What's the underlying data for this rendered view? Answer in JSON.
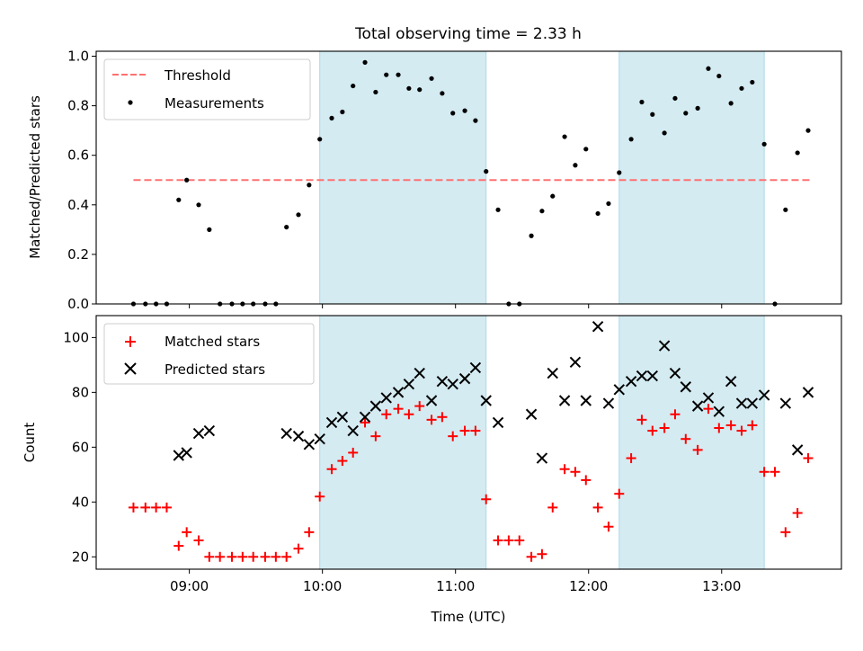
{
  "figure": {
    "title": "Total observing time = 2.33 h",
    "xlabel": "Time (UTC)",
    "x_tick_labels": [
      "09:00",
      "10:00",
      "11:00",
      "12:00",
      "13:00"
    ]
  },
  "colors": {
    "threshold": "#ff7070",
    "measurements": "#000000",
    "matched": "#ff0000",
    "predicted": "#000000",
    "observing_band": "#add8e6"
  },
  "chart_data": [
    {
      "type": "scatter",
      "panel": "top",
      "title": "Total observing time = 2.33 h",
      "xlabel": "",
      "ylabel": "Matched/Predicted stars",
      "x_unit": "hours UTC",
      "xlim": [
        8.3,
        13.9
      ],
      "ylim": [
        0.0,
        1.02
      ],
      "y_ticks": [
        0.0,
        0.2,
        0.4,
        0.6,
        0.8,
        1.0
      ],
      "y_tick_labels": [
        "0.0",
        "0.2",
        "0.4",
        "0.6",
        "0.8",
        "1.0"
      ],
      "legend": "upper-left",
      "grid": false,
      "shaded_intervals": [
        [
          9.98,
          11.23
        ],
        [
          12.23,
          13.32
        ]
      ],
      "series": [
        {
          "name": "Threshold",
          "style": "dashed-line",
          "x": [
            8.58,
            13.67
          ],
          "y": [
            0.5,
            0.5
          ]
        },
        {
          "name": "Measurements",
          "style": "dot",
          "x": [
            8.58,
            8.67,
            8.75,
            8.83,
            8.92,
            8.98,
            9.07,
            9.15,
            9.23,
            9.32,
            9.4,
            9.48,
            9.57,
            9.65,
            9.73,
            9.82,
            9.9,
            9.98,
            10.07,
            10.15,
            10.23,
            10.32,
            10.4,
            10.48,
            10.57,
            10.65,
            10.73,
            10.82,
            10.9,
            10.98,
            11.07,
            11.15,
            11.23,
            11.32,
            11.4,
            11.48,
            11.57,
            11.65,
            11.73,
            11.82,
            11.9,
            11.98,
            12.07,
            12.15,
            12.23,
            12.32,
            12.4,
            12.48,
            12.57,
            12.65,
            12.73,
            12.82,
            12.9,
            12.98,
            13.07,
            13.15,
            13.23,
            13.32,
            13.4,
            13.48,
            13.57,
            13.65
          ],
          "y": [
            0.0,
            0.0,
            0.0,
            0.0,
            0.42,
            0.5,
            0.4,
            0.3,
            0.0,
            0.0,
            0.0,
            0.0,
            0.0,
            0.0,
            0.31,
            0.36,
            0.48,
            0.665,
            0.75,
            0.775,
            0.88,
            0.975,
            0.855,
            0.925,
            0.925,
            0.87,
            0.865,
            0.91,
            0.85,
            0.77,
            0.78,
            0.74,
            0.535,
            0.38,
            0.0,
            0.0,
            0.275,
            0.375,
            0.435,
            0.675,
            0.56,
            0.625,
            0.365,
            0.405,
            0.53,
            0.665,
            0.815,
            0.765,
            0.69,
            0.83,
            0.77,
            0.79,
            0.95,
            0.92,
            0.81,
            0.87,
            0.895,
            0.645,
            0.0,
            0.38,
            0.61,
            0.7
          ]
        }
      ]
    },
    {
      "type": "scatter",
      "panel": "bottom",
      "title": "",
      "xlabel": "Time (UTC)",
      "ylabel": "Count",
      "x_unit": "hours UTC",
      "xlim": [
        8.3,
        13.9
      ],
      "ylim": [
        15.5,
        108
      ],
      "y_ticks": [
        20,
        40,
        60,
        80,
        100
      ],
      "y_tick_labels": [
        "20",
        "40",
        "60",
        "80",
        "100"
      ],
      "legend": "upper-left",
      "grid": false,
      "shaded_intervals": [
        [
          9.98,
          11.23
        ],
        [
          12.23,
          13.32
        ]
      ],
      "series": [
        {
          "name": "Matched stars",
          "marker": "plus",
          "x": [
            8.58,
            8.67,
            8.75,
            8.83,
            8.92,
            8.98,
            9.07,
            9.15,
            9.23,
            9.32,
            9.4,
            9.48,
            9.57,
            9.65,
            9.73,
            9.82,
            9.9,
            9.98,
            10.07,
            10.15,
            10.23,
            10.32,
            10.4,
            10.48,
            10.57,
            10.65,
            10.73,
            10.82,
            10.9,
            10.98,
            11.07,
            11.15,
            11.23,
            11.32,
            11.4,
            11.48,
            11.57,
            11.65,
            11.73,
            11.82,
            11.9,
            11.98,
            12.07,
            12.15,
            12.23,
            12.32,
            12.4,
            12.48,
            12.57,
            12.65,
            12.73,
            12.82,
            12.9,
            12.98,
            13.07,
            13.15,
            13.23,
            13.32,
            13.4,
            13.48,
            13.57,
            13.65
          ],
          "y": [
            38,
            38,
            38,
            38,
            24,
            29,
            26,
            20,
            20,
            20,
            20,
            20,
            20,
            20,
            20,
            23,
            29,
            42,
            52,
            55,
            58,
            69,
            64,
            72,
            74,
            72,
            75,
            70,
            71,
            64,
            66,
            66,
            41,
            26,
            26,
            26,
            20,
            21,
            38,
            52,
            51,
            48,
            38,
            31,
            43,
            56,
            70,
            66,
            67,
            72,
            63,
            59,
            74,
            67,
            68,
            66,
            68,
            51,
            51,
            29,
            36,
            56
          ]
        },
        {
          "name": "Predicted stars",
          "marker": "x",
          "x": [
            8.92,
            8.98,
            9.07,
            9.15,
            9.73,
            9.82,
            9.9,
            9.98,
            10.07,
            10.15,
            10.23,
            10.32,
            10.4,
            10.48,
            10.57,
            10.65,
            10.73,
            10.82,
            10.9,
            10.98,
            11.07,
            11.15,
            11.23,
            11.32,
            11.57,
            11.65,
            11.73,
            11.82,
            11.9,
            11.98,
            12.07,
            12.15,
            12.23,
            12.32,
            12.4,
            12.48,
            12.57,
            12.65,
            12.73,
            12.82,
            12.9,
            12.98,
            13.07,
            13.15,
            13.23,
            13.32,
            13.48,
            13.57,
            13.65
          ],
          "y": [
            57,
            58,
            65,
            66,
            65,
            64,
            61,
            63,
            69,
            71,
            66,
            71,
            75,
            78,
            80,
            83,
            87,
            77,
            84,
            83,
            85,
            89,
            77,
            69,
            72,
            56,
            87,
            77,
            91,
            77,
            104,
            76,
            81,
            84,
            86,
            86,
            97,
            87,
            82,
            75,
            78,
            73,
            84,
            76,
            76,
            79,
            76,
            59,
            80
          ]
        }
      ]
    }
  ]
}
